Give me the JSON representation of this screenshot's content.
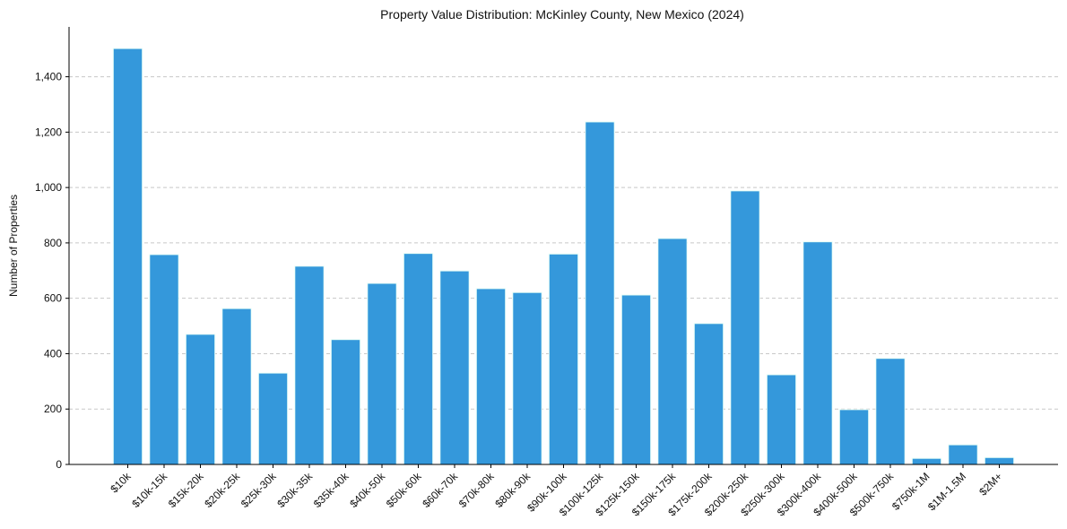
{
  "chart_data": {
    "type": "bar",
    "title": "Property Value Distribution: McKinley County, New Mexico (2024)",
    "xlabel": "",
    "ylabel": "Number of Properties",
    "ylim": [
      0,
      1580
    ],
    "yticks": [
      0,
      200,
      400,
      600,
      800,
      1000,
      1200,
      1400
    ],
    "grid": true,
    "bar_color": "#3498db",
    "categories": [
      "$10k",
      "$10k-15k",
      "$15k-20k",
      "$20k-25k",
      "$25k-30k",
      "$30k-35k",
      "$35k-40k",
      "$40k-50k",
      "$50k-60k",
      "$60k-70k",
      "$70k-80k",
      "$80k-90k",
      "$90k-100k",
      "$100k-125k",
      "$125k-150k",
      "$150k-175k",
      "$175k-200k",
      "$200k-250k",
      "$250k-300k",
      "$300k-400k",
      "$400k-500k",
      "$500k-750k",
      "$750k-1M",
      "$1M-1.5M",
      "$2M+"
    ],
    "values": [
      1502,
      758,
      470,
      563,
      330,
      716,
      451,
      654,
      762,
      699,
      635,
      621,
      760,
      1237,
      612,
      816,
      509,
      988,
      324,
      804,
      198,
      383,
      22,
      71,
      25
    ]
  }
}
